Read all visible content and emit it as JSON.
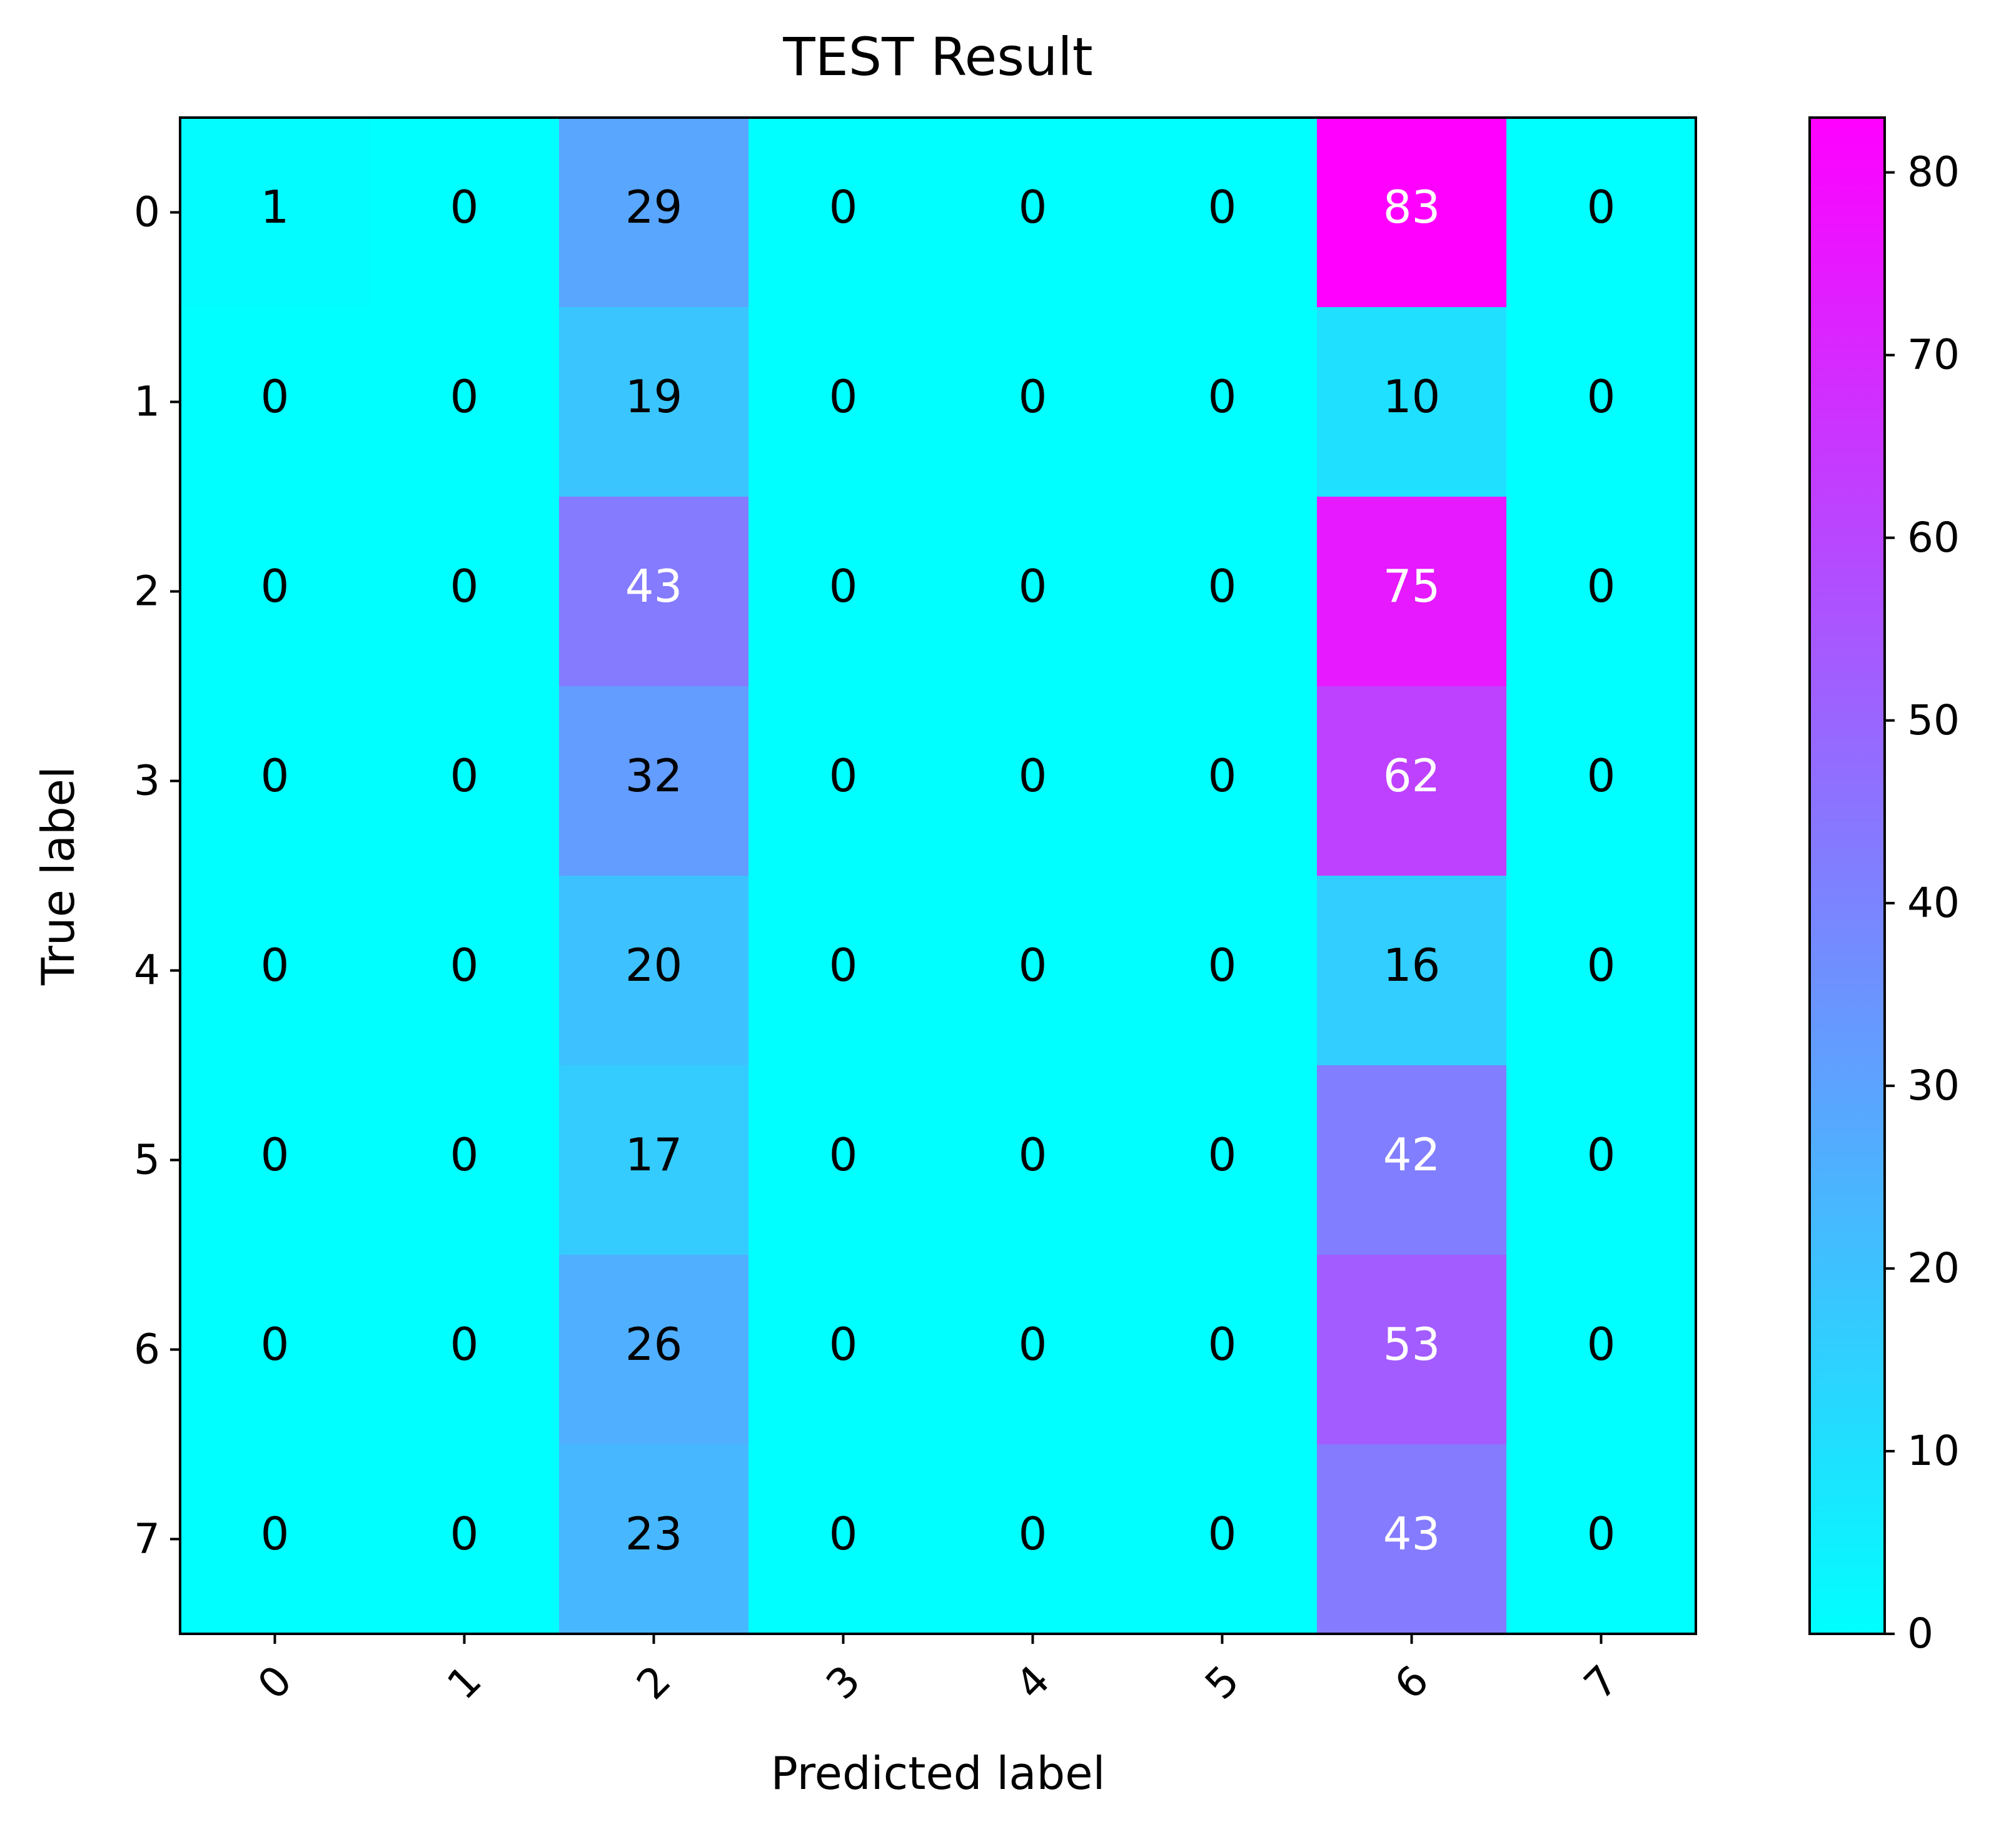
{
  "chart_data": {
    "type": "heatmap",
    "title": "TEST Result",
    "xlabel": "Predicted label",
    "ylabel": "True label",
    "x_categories": [
      "0",
      "1",
      "2",
      "3",
      "4",
      "5",
      "6",
      "7"
    ],
    "y_categories": [
      "0",
      "1",
      "2",
      "3",
      "4",
      "5",
      "6",
      "7"
    ],
    "values": [
      [
        1,
        0,
        29,
        0,
        0,
        0,
        83,
        0
      ],
      [
        0,
        0,
        19,
        0,
        0,
        0,
        10,
        0
      ],
      [
        0,
        0,
        43,
        0,
        0,
        0,
        75,
        0
      ],
      [
        0,
        0,
        32,
        0,
        0,
        0,
        62,
        0
      ],
      [
        0,
        0,
        20,
        0,
        0,
        0,
        16,
        0
      ],
      [
        0,
        0,
        17,
        0,
        0,
        0,
        42,
        0
      ],
      [
        0,
        0,
        26,
        0,
        0,
        0,
        53,
        0
      ],
      [
        0,
        0,
        23,
        0,
        0,
        0,
        43,
        0
      ]
    ],
    "colormap": "cool",
    "colormap_start": "#00ffff",
    "colormap_end": "#ff00ff",
    "vmin": 0,
    "vmax": 83,
    "colorbar_ticks": [
      0,
      10,
      20,
      30,
      40,
      50,
      60,
      70,
      80
    ],
    "text_color_light": "#ffffff",
    "text_color_dark": "#000000",
    "xtick_rotation_deg": 45
  }
}
